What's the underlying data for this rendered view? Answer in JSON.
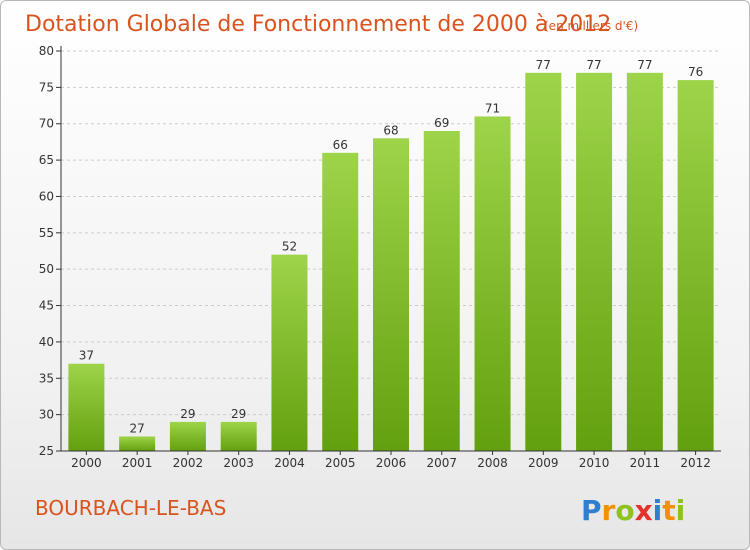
{
  "header": {
    "title": "Dotation Globale de Fonctionnement de 2000 à 2012",
    "unit": "(en milliers d'€)"
  },
  "footer": {
    "commune": "BOURBACH-LE-BAS",
    "logo": {
      "letters": [
        "P",
        "r",
        "o",
        "x",
        "i",
        "t",
        "i"
      ],
      "colors": [
        "#2f7fd1",
        "#f29200",
        "#8dc21f",
        "#e2322b",
        "#2f7fd1",
        "#f29200",
        "#8dc21f"
      ]
    }
  },
  "colors": {
    "bar_light": "#9ed44a",
    "bar_dark": "#63a00f",
    "grid": "#cccccc",
    "axis": "#333333",
    "title": "#d9531e"
  },
  "chart_data": {
    "type": "bar",
    "title": "Dotation Globale de Fonctionnement de 2000 à 2012",
    "subtitle": "(en milliers d'€)",
    "xlabel": "",
    "ylabel": "",
    "categories": [
      "2000",
      "2001",
      "2002",
      "2003",
      "2004",
      "2005",
      "2006",
      "2007",
      "2008",
      "2009",
      "2010",
      "2011",
      "2012"
    ],
    "values": [
      37,
      27,
      29,
      29,
      52,
      66,
      68,
      69,
      71,
      77,
      77,
      77,
      76
    ],
    "ylim": [
      25,
      80
    ],
    "yticks": [
      25,
      30,
      35,
      40,
      45,
      50,
      55,
      60,
      65,
      70,
      75,
      80
    ],
    "grid": true,
    "grid_axis": "y",
    "legend": "none",
    "data_labels": true
  }
}
